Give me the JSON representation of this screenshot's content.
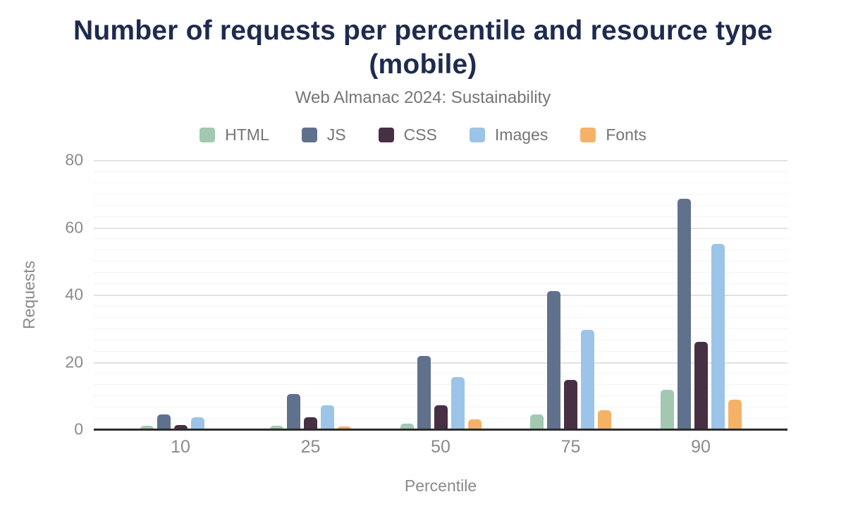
{
  "colors": {
    "background": "#ffffff",
    "title_text": "#1e2b4e",
    "subtitle_text": "#757575",
    "legend_text": "#757575",
    "axis_text": "#8a8a8a",
    "axis_line": "#2d2d2d",
    "grid_major": "#e2e2e2",
    "grid_minor": "#f4f4f4"
  },
  "chart_data": {
    "type": "bar",
    "title": "Number of requests per percentile and resource type (mobile)",
    "subtitle": "Web Almanac 2024: Sustainability",
    "xlabel": "Percentile",
    "ylabel": "Requests",
    "categories": [
      "10",
      "25",
      "50",
      "75",
      "90"
    ],
    "series": [
      {
        "name": "HTML",
        "color": "#a2c8b2",
        "values": [
          1.0,
          1.0,
          1.7,
          4.5,
          11.8
        ]
      },
      {
        "name": "JS",
        "color": "#5f718d",
        "values": [
          4.3,
          10.5,
          21.8,
          41.0,
          68.4
        ]
      },
      {
        "name": "CSS",
        "color": "#472f44",
        "values": [
          1.2,
          3.5,
          7.2,
          14.6,
          26.0
        ]
      },
      {
        "name": "Images",
        "color": "#9cc4e8",
        "values": [
          3.6,
          7.2,
          15.6,
          29.5,
          55.0
        ]
      },
      {
        "name": "Fonts",
        "color": "#f5b266",
        "values": [
          0,
          0.9,
          3.0,
          5.6,
          8.8
        ]
      }
    ],
    "ylim": [
      0,
      80
    ],
    "yticks": [
      0,
      20,
      40,
      60,
      80
    ],
    "grid": "horizontal, major every 20 with 5 minor lines between majors",
    "legend_position": "top-center",
    "bar_style": "rounded top corners, grouped"
  }
}
